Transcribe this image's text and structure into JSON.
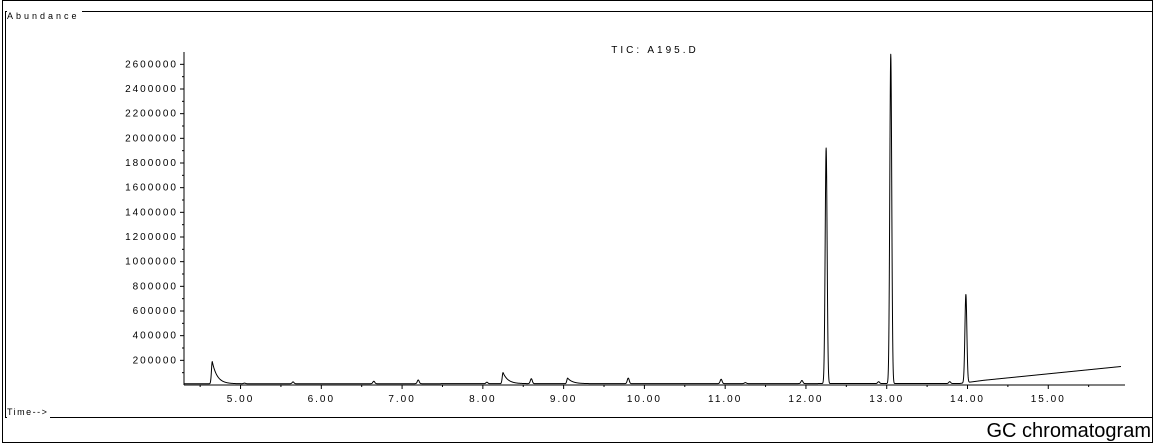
{
  "caption": "GC chromatogram",
  "chart_data": {
    "type": "line",
    "title": "TIC: A195.D",
    "ylabel": "Abundance",
    "xlabel": "Time-->",
    "xlim": [
      4.3,
      15.95
    ],
    "ylim": [
      0,
      2700000
    ],
    "x_ticks": [
      "5.00",
      "6.00",
      "7.00",
      "8.00",
      "9.00",
      "10.00",
      "11.00",
      "12.00",
      "13.00",
      "14.00",
      "15.00"
    ],
    "y_ticks": [
      "200000",
      "400000",
      "600000",
      "800000",
      "1000000",
      "1200000",
      "1400000",
      "1600000",
      "1800000",
      "2000000",
      "2200000",
      "2400000",
      "2600000"
    ],
    "grid": false,
    "baseline": [
      [
        4.3,
        10000
      ],
      [
        13.9,
        12000
      ],
      [
        14.2,
        38000
      ],
      [
        15.9,
        150000
      ]
    ],
    "peaks": [
      {
        "rt": 4.65,
        "height": 180000,
        "tail": true
      },
      {
        "rt": 5.05,
        "height": 5000
      },
      {
        "rt": 5.65,
        "height": 15000
      },
      {
        "rt": 6.65,
        "height": 20000
      },
      {
        "rt": 7.2,
        "height": 30000
      },
      {
        "rt": 8.05,
        "height": 12000
      },
      {
        "rt": 8.25,
        "height": 90000,
        "tail": true
      },
      {
        "rt": 8.6,
        "height": 40000
      },
      {
        "rt": 9.05,
        "height": 45000,
        "tail": true
      },
      {
        "rt": 9.8,
        "height": 45000
      },
      {
        "rt": 10.95,
        "height": 35000
      },
      {
        "rt": 11.25,
        "height": 8000
      },
      {
        "rt": 11.95,
        "height": 25000
      },
      {
        "rt": 12.25,
        "height": 1910000
      },
      {
        "rt": 12.9,
        "height": 15000
      },
      {
        "rt": 13.05,
        "height": 2670000
      },
      {
        "rt": 13.78,
        "height": 15000
      },
      {
        "rt": 13.98,
        "height": 715000
      }
    ]
  }
}
